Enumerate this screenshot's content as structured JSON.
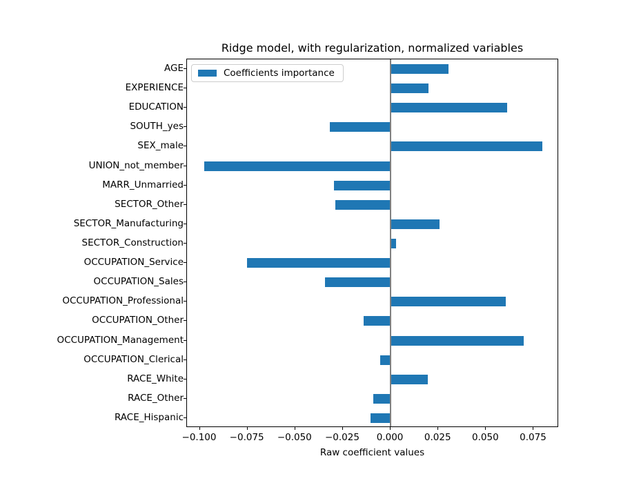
{
  "figure": {
    "background": "#ffffff",
    "text_color": "#000000"
  },
  "chart_data": {
    "type": "bar",
    "orientation": "horizontal",
    "title": "Ridge model, with regularization, normalized variables",
    "xlabel": "Raw coefficient values",
    "ylabel": "",
    "legend": {
      "label": "Coefficients importance",
      "position": "upper left"
    },
    "bar_color": "#1f77b4",
    "zero_line_color": "#808080",
    "grid": false,
    "xlim": [
      -0.1067,
      0.0882
    ],
    "xticks": [
      -0.1,
      -0.075,
      -0.05,
      -0.025,
      0.0,
      0.025,
      0.05,
      0.075
    ],
    "xtick_labels": [
      "−0.100",
      "−0.075",
      "−0.050",
      "−0.025",
      "0.000",
      "0.025",
      "0.050",
      "0.075"
    ],
    "categories": [
      "AGE",
      "EXPERIENCE",
      "EDUCATION",
      "SOUTH_yes",
      "SEX_male",
      "UNION_not_member",
      "MARR_Unmarried",
      "SECTOR_Other",
      "SECTOR_Manufacturing",
      "SECTOR_Construction",
      "OCCUPATION_Service",
      "OCCUPATION_Sales",
      "OCCUPATION_Professional",
      "OCCUPATION_Other",
      "OCCUPATION_Management",
      "OCCUPATION_Clerical",
      "RACE_White",
      "RACE_Other",
      "RACE_Hispanic"
    ],
    "values": [
      0.0303,
      0.0197,
      0.061,
      -0.0317,
      0.0794,
      -0.0978,
      -0.0295,
      -0.0289,
      0.0255,
      0.003,
      -0.0753,
      -0.0343,
      0.0604,
      -0.0142,
      0.0698,
      -0.0054,
      0.0194,
      -0.0091,
      -0.0106
    ]
  }
}
